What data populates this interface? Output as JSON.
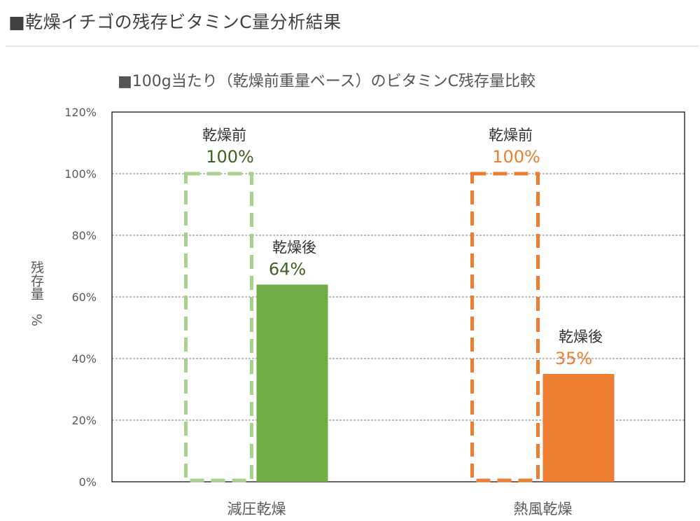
{
  "header": {
    "title": "■乾燥イチゴの残存ビタミンC量分析結果"
  },
  "chart_data": {
    "type": "bar",
    "title": "■100g当たり（乾燥前重量ベース）のビタミンC残存量比較",
    "xlabel": "",
    "ylabel": "残存量　%",
    "ylim": [
      0,
      120
    ],
    "yticks": [
      "0%",
      "20%",
      "40%",
      "60%",
      "80%",
      "100%",
      "120%"
    ],
    "grid": true,
    "categories": [
      "減圧乾燥",
      "熱風乾燥"
    ],
    "series": [
      {
        "name": "乾燥前",
        "values": [
          100,
          100
        ]
      },
      {
        "name": "乾燥後",
        "values": [
          64,
          35
        ]
      }
    ],
    "annotations": [
      {
        "series_label": "乾燥前",
        "value_label": "100%"
      },
      {
        "series_label": "乾燥前",
        "value_label": "100%"
      },
      {
        "series_label": "乾燥後",
        "value_label": "64%"
      },
      {
        "series_label": "乾燥後",
        "value_label": "35%"
      }
    ]
  },
  "colors": {
    "group1_before": "#a9d18e",
    "group1_after": "#70ad47",
    "group1_label": "#3f5f23",
    "group2_before": "#ed7d31",
    "group2_after": "#ed7d31",
    "group2_label": "#ed7d31",
    "axis": "#000000",
    "grid": "#7f7f7f",
    "text": "#595959"
  }
}
